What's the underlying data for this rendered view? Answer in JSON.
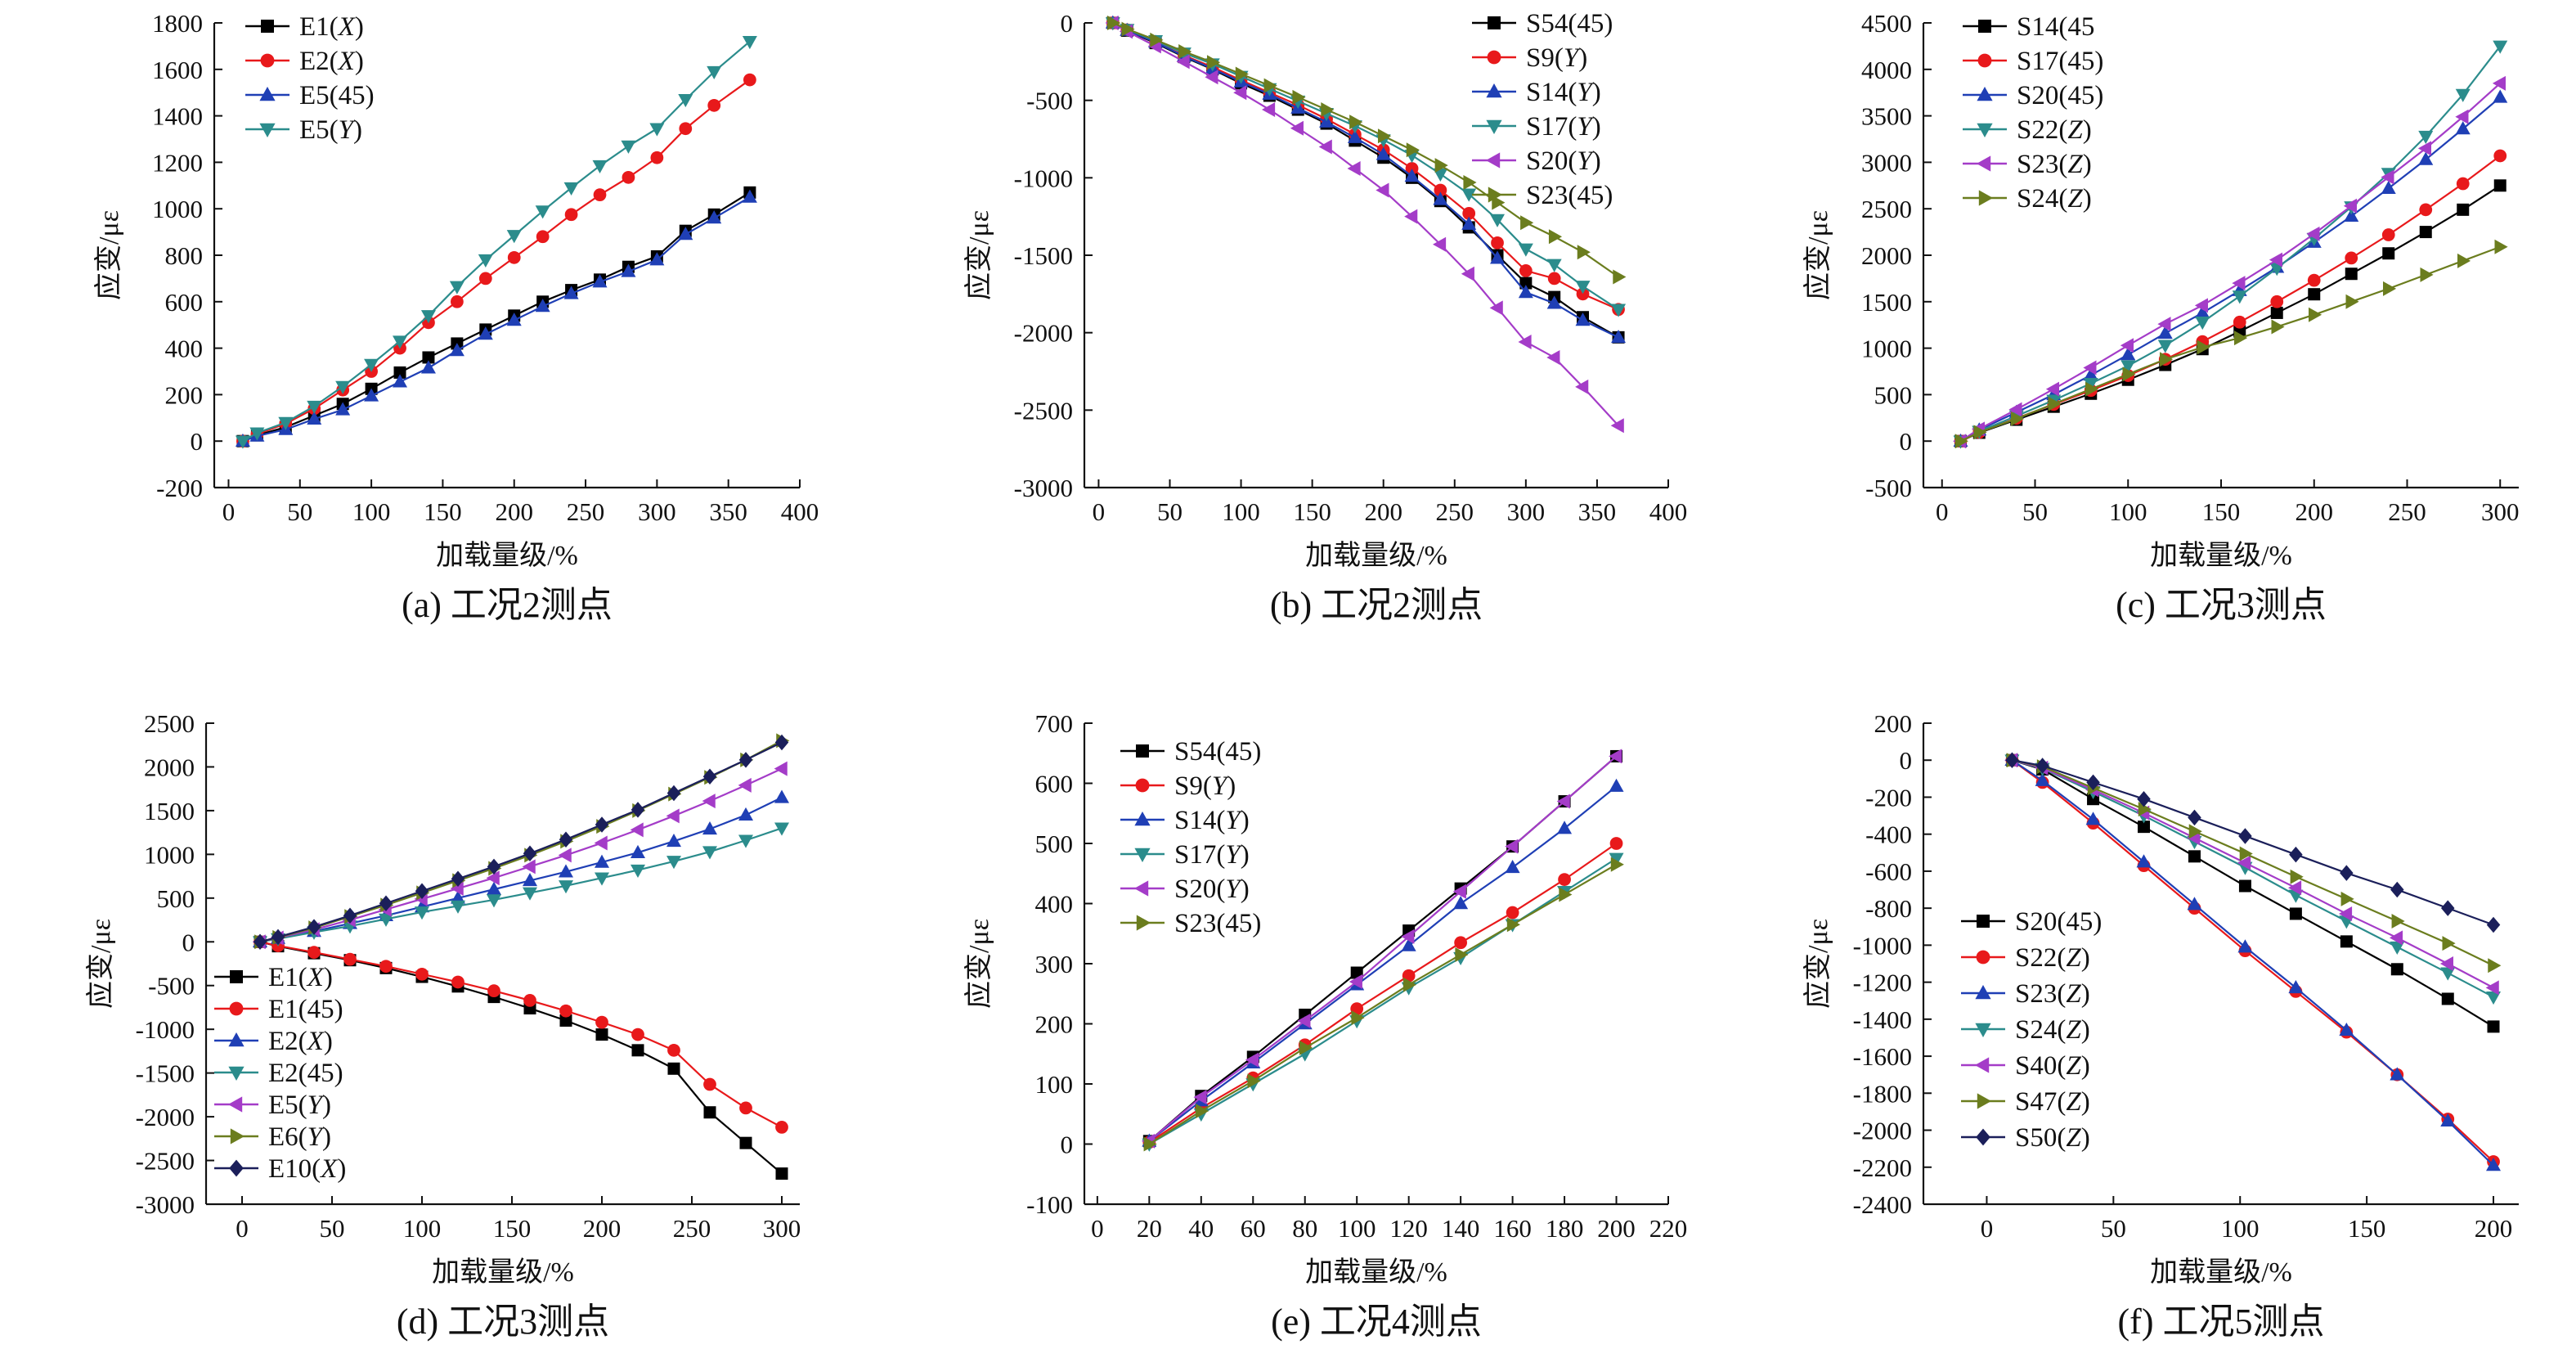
{
  "figure": {
    "axis_title_y": "应变/με",
    "axis_title_x": "加载量级/%"
  },
  "chart_data": [
    {
      "id": "a",
      "type": "line",
      "caption": "(a)  工况2测点",
      "xlabel": "加载量级/%",
      "ylabel": "应变/με",
      "xlim": [
        -10,
        400
      ],
      "ylim": [
        -200,
        1800
      ],
      "xticks": [
        0,
        50,
        100,
        150,
        200,
        250,
        300,
        350,
        400
      ],
      "yticks": [
        -200,
        0,
        200,
        400,
        600,
        800,
        1000,
        1200,
        1400,
        1600,
        1800
      ],
      "legend_position": "top-left",
      "x": [
        10,
        20,
        40,
        60,
        80,
        100,
        120,
        140,
        160,
        180,
        200,
        220,
        240,
        260,
        280,
        300,
        320,
        340,
        365
      ],
      "series": [
        {
          "name": "E1(X)",
          "marker": "square",
          "color": "#000000",
          "values": [
            0,
            25,
            60,
            110,
            160,
            225,
            295,
            360,
            420,
            480,
            540,
            600,
            650,
            695,
            750,
            795,
            905,
            975,
            1070
          ]
        },
        {
          "name": "E2(X)",
          "marker": "circle",
          "color": "#e8191b",
          "values": [
            0,
            30,
            75,
            140,
            220,
            300,
            400,
            510,
            600,
            700,
            790,
            880,
            975,
            1060,
            1135,
            1220,
            1345,
            1445,
            1555
          ]
        },
        {
          "name": "E5(45)",
          "marker": "triangle-up",
          "color": "#1f3fb5",
          "values": [
            0,
            22,
            50,
            95,
            135,
            195,
            255,
            315,
            390,
            460,
            520,
            580,
            635,
            685,
            730,
            780,
            890,
            960,
            1050
          ]
        },
        {
          "name": "E5(Y)",
          "marker": "triangle-down",
          "color": "#2b8c8c",
          "values": [
            0,
            35,
            80,
            150,
            235,
            330,
            430,
            540,
            665,
            780,
            885,
            990,
            1090,
            1185,
            1270,
            1345,
            1470,
            1590,
            1720
          ]
        }
      ]
    },
    {
      "id": "b",
      "type": "line",
      "caption": "(b)  工况2测点",
      "xlabel": "加载量级/%",
      "ylabel": "应变/με",
      "xlim": [
        -10,
        400
      ],
      "ylim": [
        -3000,
        0
      ],
      "xticks": [
        0,
        50,
        100,
        150,
        200,
        250,
        300,
        350,
        400
      ],
      "yticks": [
        -3000,
        -2500,
        -2000,
        -1500,
        -1000,
        -500,
        0
      ],
      "legend_position": "top-right",
      "x": [
        10,
        20,
        40,
        60,
        80,
        100,
        120,
        140,
        160,
        180,
        200,
        220,
        240,
        260,
        280,
        300,
        320,
        340,
        365
      ],
      "series": [
        {
          "name": "S54(45)",
          "marker": "square",
          "color": "#000000",
          "values": [
            0,
            -50,
            -130,
            -220,
            -300,
            -390,
            -470,
            -560,
            -650,
            -760,
            -870,
            -1000,
            -1150,
            -1320,
            -1500,
            -1680,
            -1770,
            -1900,
            -2030
          ]
        },
        {
          "name": "S9(Y)",
          "marker": "circle",
          "color": "#e8191b",
          "values": [
            0,
            -45,
            -125,
            -210,
            -285,
            -370,
            -450,
            -530,
            -620,
            -720,
            -820,
            -940,
            -1080,
            -1230,
            -1420,
            -1600,
            -1650,
            -1750,
            -1850
          ]
        },
        {
          "name": "S14(Y)",
          "marker": "triangle-up",
          "color": "#1f3fb5",
          "values": [
            0,
            -48,
            -125,
            -215,
            -295,
            -380,
            -460,
            -550,
            -640,
            -740,
            -850,
            -990,
            -1140,
            -1300,
            -1520,
            -1740,
            -1810,
            -1920,
            -2030
          ]
        },
        {
          "name": "S17(Y)",
          "marker": "triangle-down",
          "color": "#2b8c8c",
          "values": [
            0,
            -42,
            -115,
            -195,
            -265,
            -345,
            -425,
            -505,
            -585,
            -665,
            -755,
            -855,
            -975,
            -1105,
            -1270,
            -1460,
            -1560,
            -1700,
            -1850
          ]
        },
        {
          "name": "S20(Y)",
          "marker": "triangle-left",
          "color": "#a43cc8",
          "values": [
            0,
            -55,
            -150,
            -250,
            -350,
            -450,
            -560,
            -680,
            -800,
            -940,
            -1080,
            -1250,
            -1430,
            -1620,
            -1840,
            -2060,
            -2160,
            -2350,
            -2600
          ]
        },
        {
          "name": "S23(45)",
          "marker": "triangle-right",
          "color": "#6b7d1e",
          "values": [
            0,
            -40,
            -110,
            -185,
            -255,
            -330,
            -405,
            -480,
            -560,
            -640,
            -730,
            -820,
            -920,
            -1030,
            -1160,
            -1290,
            -1380,
            -1480,
            -1640
          ]
        }
      ]
    },
    {
      "id": "c",
      "type": "line",
      "caption": "(c)  工况3测点",
      "xlabel": "加载量级/%",
      "ylabel": "应变/με",
      "xlim": [
        -10,
        310
      ],
      "ylim": [
        -500,
        4500
      ],
      "xticks": [
        0,
        50,
        100,
        150,
        200,
        250,
        300
      ],
      "yticks": [
        -500,
        0,
        500,
        1000,
        1500,
        2000,
        2500,
        3000,
        3500,
        4000,
        4500
      ],
      "legend_position": "top-left",
      "x": [
        10,
        20,
        40,
        60,
        80,
        100,
        120,
        140,
        160,
        180,
        200,
        220,
        240,
        260,
        280,
        300
      ],
      "series": [
        {
          "name": "S14(45",
          "marker": "square",
          "color": "#000000",
          "values": [
            0,
            90,
            230,
            370,
            510,
            660,
            820,
            990,
            1180,
            1380,
            1580,
            1800,
            2020,
            2250,
            2490,
            2750
          ]
        },
        {
          "name": "S17(45)",
          "marker": "circle",
          "color": "#e8191b",
          "values": [
            0,
            95,
            245,
            395,
            545,
            705,
            880,
            1070,
            1280,
            1500,
            1730,
            1970,
            2220,
            2490,
            2770,
            3070
          ]
        },
        {
          "name": "S20(45)",
          "marker": "triangle-up",
          "color": "#1f3fb5",
          "values": [
            0,
            120,
            310,
            500,
            710,
            930,
            1160,
            1380,
            1620,
            1870,
            2140,
            2420,
            2720,
            3030,
            3360,
            3700
          ]
        },
        {
          "name": "S22(Z)",
          "marker": "triangle-down",
          "color": "#2b8c8c",
          "values": [
            0,
            105,
            270,
            440,
            620,
            810,
            1030,
            1280,
            1560,
            1860,
            2180,
            2520,
            2880,
            3280,
            3730,
            4250
          ]
        },
        {
          "name": "S23(Z)",
          "marker": "triangle-left",
          "color": "#a43cc8",
          "values": [
            0,
            130,
            340,
            560,
            790,
            1030,
            1260,
            1460,
            1700,
            1950,
            2230,
            2530,
            2840,
            3150,
            3490,
            3850
          ]
        },
        {
          "name": "S24(Z)",
          "marker": "triangle-right",
          "color": "#6b7d1e",
          "values": [
            0,
            95,
            240,
            400,
            560,
            720,
            880,
            1010,
            1110,
            1230,
            1360,
            1500,
            1640,
            1790,
            1940,
            2090
          ]
        }
      ]
    },
    {
      "id": "d",
      "type": "line",
      "caption": "(d)  工况3测点",
      "xlabel": "加载量级/%",
      "ylabel": "应变/με",
      "xlim": [
        -20,
        310
      ],
      "ylim": [
        -3000,
        2500
      ],
      "xticks": [
        0,
        50,
        100,
        150,
        200,
        250,
        300
      ],
      "yticks": [
        -3000,
        -2500,
        -2000,
        -1500,
        -1000,
        -500,
        0,
        500,
        1000,
        1500,
        2000,
        2500
      ],
      "legend_position": "bottom-left",
      "x": [
        10,
        20,
        40,
        60,
        80,
        100,
        120,
        140,
        160,
        180,
        200,
        220,
        240,
        260,
        280,
        300
      ],
      "series": [
        {
          "name": "E1(X)",
          "marker": "square",
          "color": "#000000",
          "values": [
            0,
            -50,
            -130,
            -210,
            -300,
            -400,
            -510,
            -630,
            -760,
            -900,
            -1060,
            -1240,
            -1450,
            -1950,
            -2300,
            -2650
          ]
        },
        {
          "name": "E1(45)",
          "marker": "circle",
          "color": "#e8191b",
          "values": [
            0,
            -45,
            -120,
            -200,
            -280,
            -370,
            -460,
            -560,
            -670,
            -790,
            -920,
            -1060,
            -1240,
            -1630,
            -1900,
            -2120
          ]
        },
        {
          "name": "E2(X)",
          "marker": "triangle-up",
          "color": "#1f3fb5",
          "values": [
            0,
            40,
            120,
            210,
            300,
            400,
            500,
            600,
            700,
            800,
            910,
            1020,
            1150,
            1290,
            1450,
            1650
          ]
        },
        {
          "name": "E2(45)",
          "marker": "triangle-down",
          "color": "#2b8c8c",
          "values": [
            0,
            35,
            110,
            180,
            260,
            340,
            410,
            480,
            560,
            640,
            730,
            820,
            920,
            1030,
            1160,
            1300
          ]
        },
        {
          "name": "E5(Y)",
          "marker": "triangle-left",
          "color": "#a43cc8",
          "values": [
            0,
            45,
            140,
            250,
            370,
            490,
            610,
            730,
            860,
            990,
            1130,
            1280,
            1440,
            1610,
            1790,
            1980
          ]
        },
        {
          "name": "E6(Y)",
          "marker": "triangle-right",
          "color": "#6b7d1e",
          "values": [
            0,
            50,
            160,
            290,
            420,
            560,
            700,
            840,
            990,
            1150,
            1320,
            1500,
            1690,
            1880,
            2080,
            2300
          ]
        },
        {
          "name": "E10(X)",
          "marker": "diamond",
          "color": "#1b1f5a",
          "values": [
            0,
            55,
            170,
            300,
            440,
            580,
            720,
            860,
            1010,
            1170,
            1340,
            1510,
            1700,
            1890,
            2080,
            2280
          ]
        }
      ]
    },
    {
      "id": "e",
      "type": "line",
      "caption": "(e)  工况4测点",
      "xlabel": "加载量级/%",
      "ylabel": "应变/με",
      "xlim": [
        -5,
        220
      ],
      "ylim": [
        -100,
        700
      ],
      "xticks": [
        0,
        20,
        40,
        60,
        80,
        100,
        120,
        140,
        160,
        180,
        200,
        220
      ],
      "yticks": [
        -100,
        0,
        100,
        200,
        300,
        400,
        500,
        600,
        700
      ],
      "legend_position": "top-left",
      "x": [
        20,
        40,
        60,
        80,
        100,
        120,
        140,
        160,
        180,
        200
      ],
      "series": [
        {
          "name": "S54(45)",
          "marker": "square",
          "color": "#000000",
          "values": [
            5,
            80,
            145,
            215,
            285,
            355,
            425,
            495,
            570,
            645
          ]
        },
        {
          "name": "S9(Y)",
          "marker": "circle",
          "color": "#e8191b",
          "values": [
            3,
            60,
            110,
            165,
            225,
            280,
            335,
            385,
            440,
            500
          ]
        },
        {
          "name": "S14(Y)",
          "marker": "triangle-up",
          "color": "#1f3fb5",
          "values": [
            5,
            72,
            135,
            200,
            265,
            330,
            400,
            460,
            525,
            595
          ]
        },
        {
          "name": "S17(Y)",
          "marker": "triangle-down",
          "color": "#2b8c8c",
          "values": [
            0,
            50,
            100,
            150,
            205,
            260,
            310,
            365,
            420,
            475
          ]
        },
        {
          "name": "S20(Y)",
          "marker": "triangle-left",
          "color": "#a43cc8",
          "values": [
            5,
            78,
            140,
            205,
            270,
            345,
            420,
            495,
            570,
            645
          ]
        },
        {
          "name": "S23(45)",
          "marker": "triangle-right",
          "color": "#6b7d1e",
          "values": [
            0,
            55,
            105,
            160,
            210,
            265,
            315,
            365,
            415,
            465
          ]
        }
      ]
    },
    {
      "id": "f",
      "type": "line",
      "caption": "(f)  工况5测点",
      "xlabel": "加载量级/%",
      "ylabel": "应变/με",
      "xlim": [
        -25,
        210
      ],
      "ylim": [
        -2400,
        200
      ],
      "xticks": [
        0,
        50,
        100,
        150,
        200
      ],
      "yticks": [
        -2400,
        -2200,
        -2000,
        -1800,
        -1600,
        -1400,
        -1200,
        -1000,
        -800,
        -600,
        -400,
        -200,
        0,
        200
      ],
      "legend_position": "bottom-left",
      "x": [
        10,
        22,
        42,
        62,
        82,
        102,
        122,
        142,
        162,
        182,
        200
      ],
      "series": [
        {
          "name": "S20(45)",
          "marker": "square",
          "color": "#000000",
          "values": [
            0,
            -50,
            -210,
            -360,
            -520,
            -680,
            -830,
            -980,
            -1130,
            -1290,
            -1440
          ]
        },
        {
          "name": "S22(Z)",
          "marker": "circle",
          "color": "#e8191b",
          "values": [
            0,
            -120,
            -340,
            -570,
            -800,
            -1030,
            -1250,
            -1470,
            -1700,
            -1940,
            -2170
          ]
        },
        {
          "name": "S23(Z)",
          "marker": "triangle-up",
          "color": "#1f3fb5",
          "values": [
            0,
            -110,
            -320,
            -550,
            -780,
            -1010,
            -1230,
            -1460,
            -1700,
            -1950,
            -2190
          ]
        },
        {
          "name": "S24(Z)",
          "marker": "triangle-down",
          "color": "#2b8c8c",
          "values": [
            0,
            -45,
            -170,
            -300,
            -440,
            -580,
            -730,
            -870,
            -1010,
            -1150,
            -1280
          ]
        },
        {
          "name": "S40(Z)",
          "marker": "triangle-left",
          "color": "#a43cc8",
          "values": [
            0,
            -42,
            -160,
            -285,
            -420,
            -555,
            -690,
            -830,
            -960,
            -1100,
            -1230
          ]
        },
        {
          "name": "S47(Z)",
          "marker": "triangle-right",
          "color": "#6b7d1e",
          "values": [
            0,
            -35,
            -150,
            -265,
            -385,
            -505,
            -630,
            -750,
            -870,
            -990,
            -1110
          ]
        },
        {
          "name": "S50(Z)",
          "marker": "diamond",
          "color": "#1b1f5a",
          "values": [
            0,
            -30,
            -120,
            -210,
            -310,
            -410,
            -510,
            -610,
            -700,
            -800,
            -890
          ]
        }
      ]
    }
  ]
}
